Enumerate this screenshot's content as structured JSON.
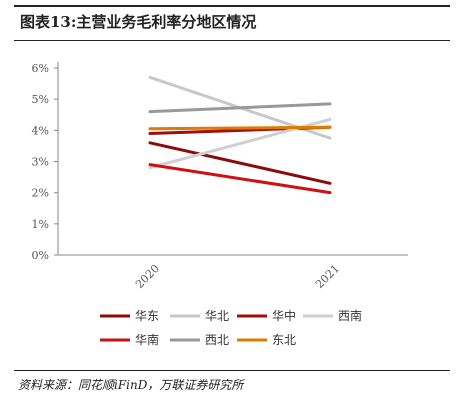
{
  "figure": {
    "title": "图表13:主营业务毛利率分地区情况",
    "source": "资料来源：同花顺iFinD，万联证券研究所"
  },
  "chart_data": {
    "type": "line",
    "title": "",
    "xlabel": "",
    "ylabel": "",
    "x": [
      "2020",
      "2021"
    ],
    "y_ticks": [
      "0%",
      "1%",
      "2%",
      "3%",
      "4%",
      "5%",
      "6%"
    ],
    "ylim": [
      0,
      6.0
    ],
    "grid": false,
    "legend_position": "bottom",
    "series": [
      {
        "name": "华东",
        "color": "#8b0a0a",
        "values": [
          3.6,
          2.3
        ]
      },
      {
        "name": "华北",
        "color": "#c8c8c8",
        "values": [
          5.7,
          3.75
        ]
      },
      {
        "name": "华中",
        "color": "#a00f0f",
        "values": [
          3.9,
          4.1
        ]
      },
      {
        "name": "西南",
        "color": "#cfcfcf",
        "values": [
          2.8,
          4.35
        ]
      },
      {
        "name": "华南",
        "color": "#d01010",
        "values": [
          2.9,
          2.0
        ]
      },
      {
        "name": "西北",
        "color": "#999999",
        "values": [
          4.6,
          4.85
        ]
      },
      {
        "name": "东北",
        "color": "#e07b00",
        "values": [
          4.05,
          4.1
        ]
      }
    ]
  }
}
